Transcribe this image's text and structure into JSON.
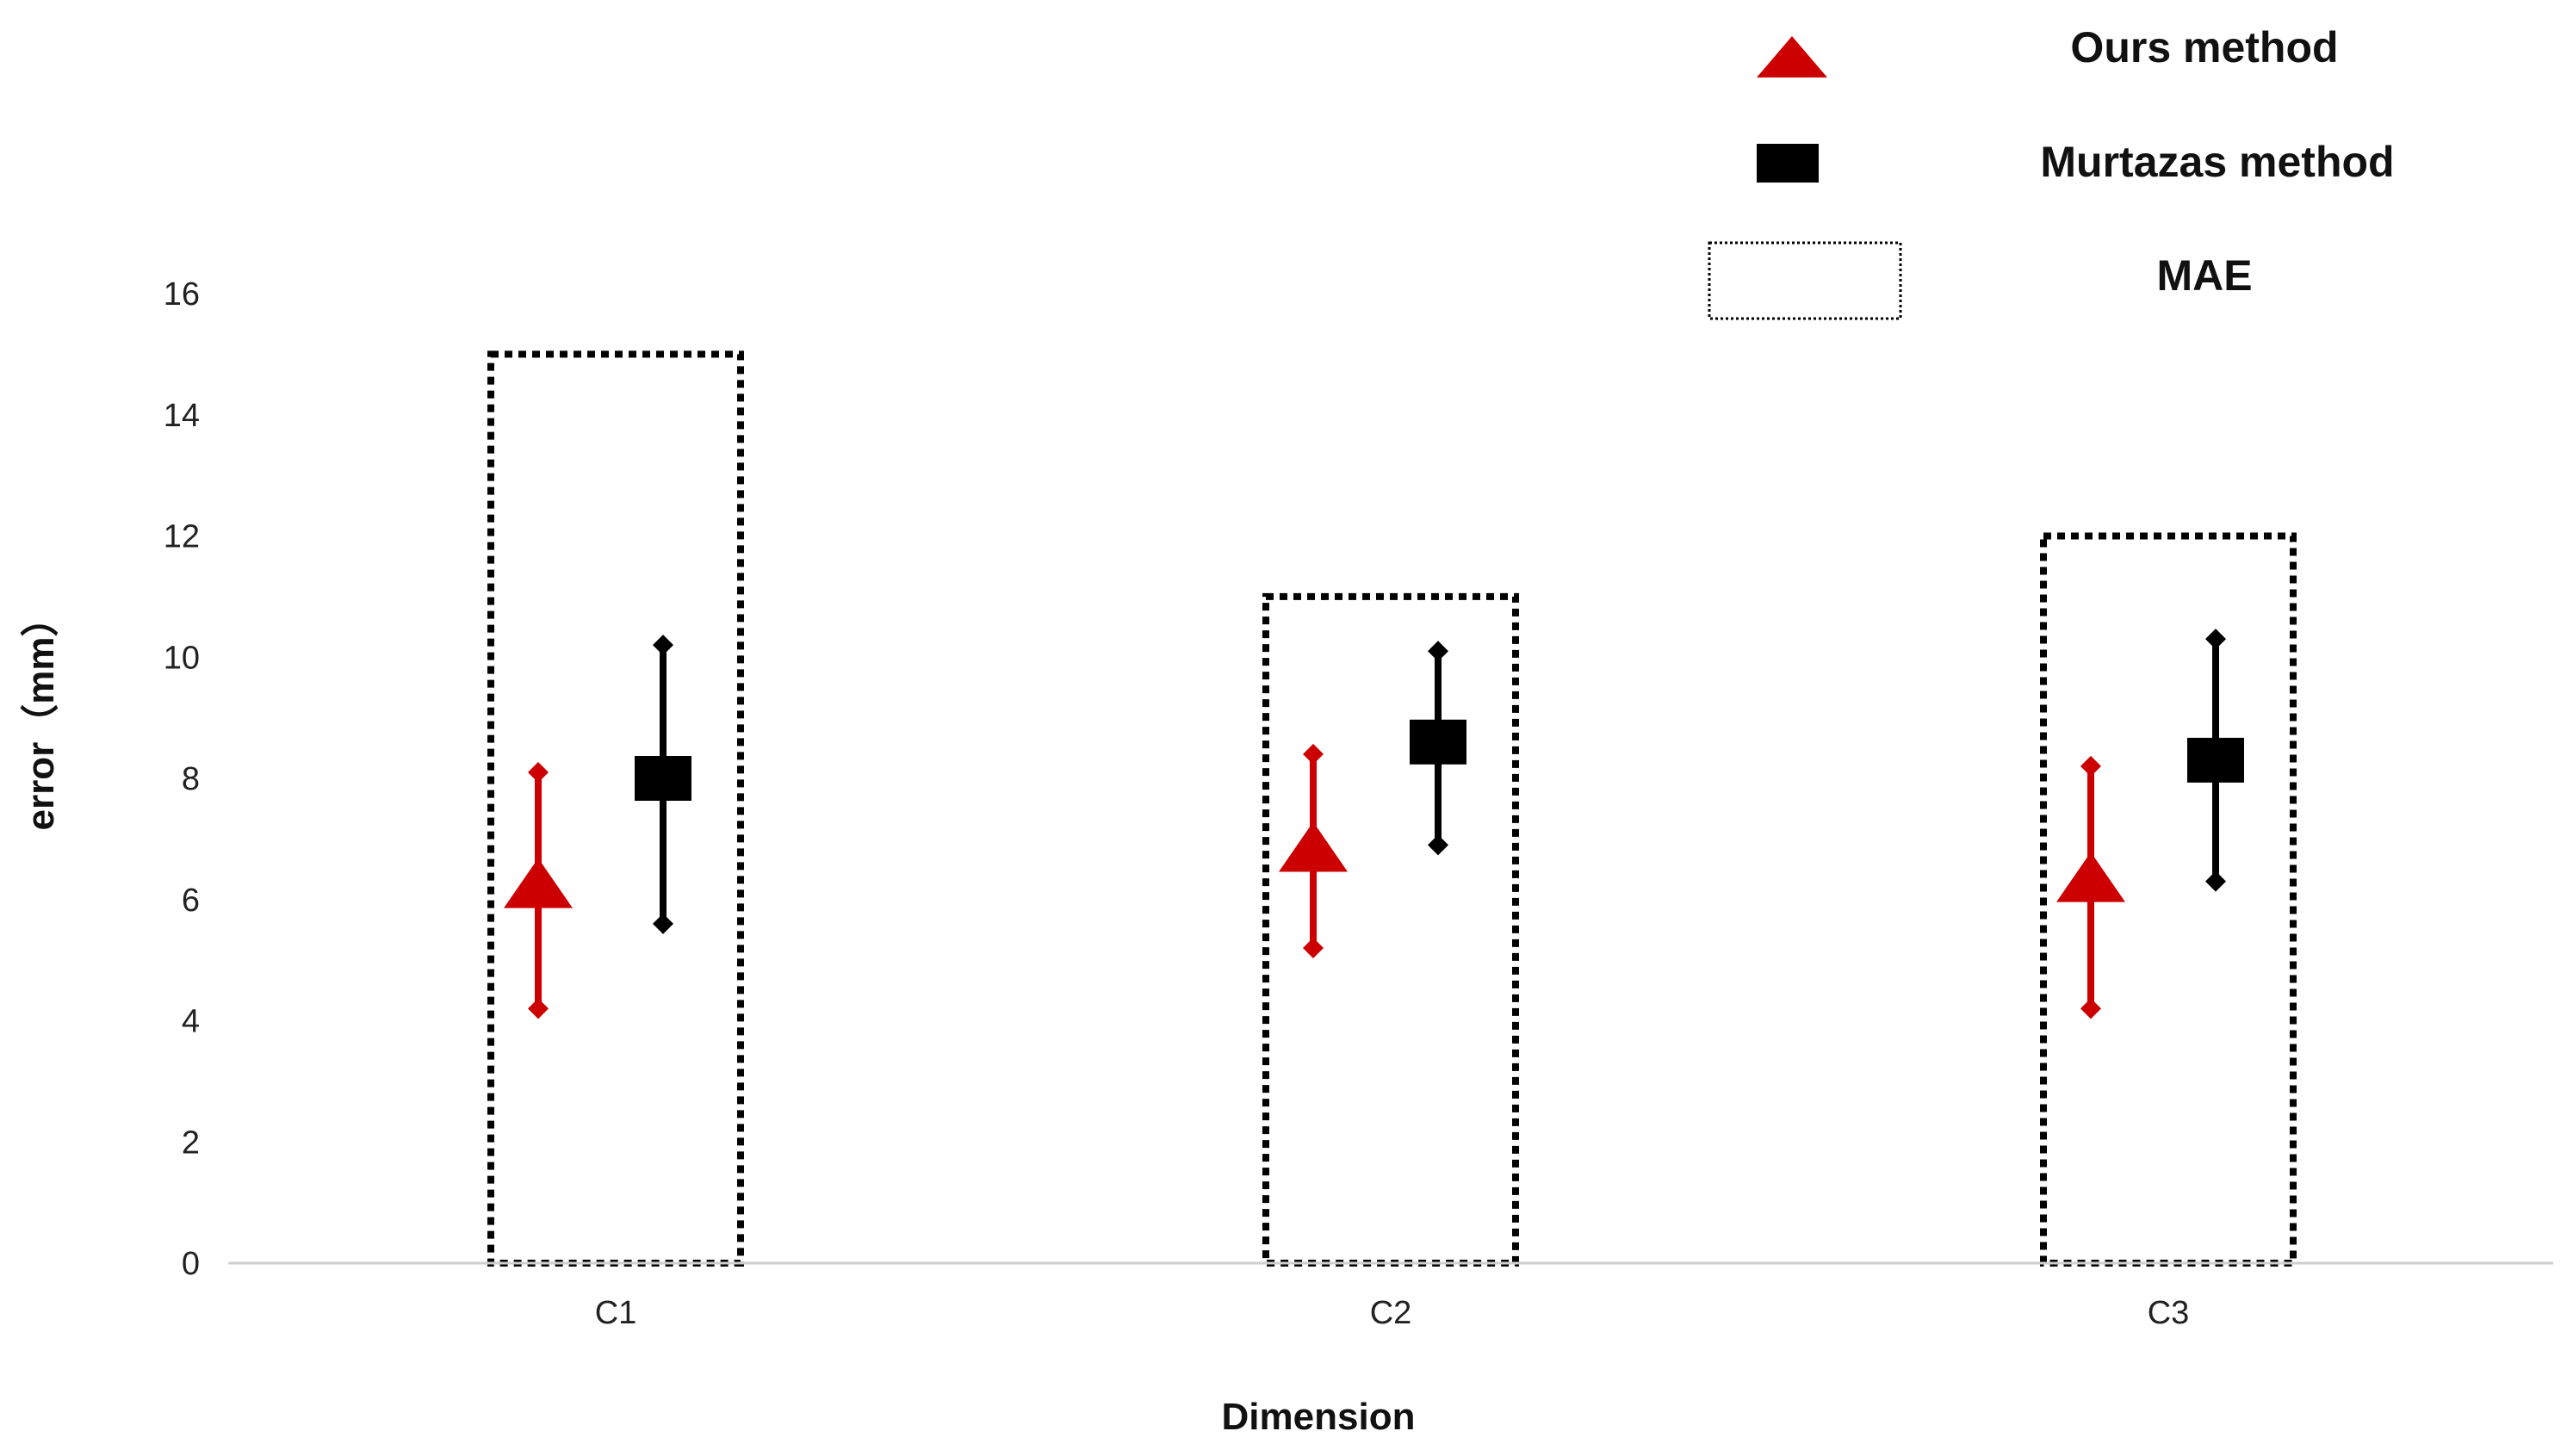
{
  "chart_data": {
    "type": "scatter",
    "title": "",
    "xlabel": "Dimension",
    "ylabel": "error（mm）",
    "categories": [
      "C1",
      "C2",
      "C3"
    ],
    "ylim": [
      0,
      16
    ],
    "yticks": [
      0,
      2,
      4,
      6,
      8,
      10,
      12,
      14,
      16
    ],
    "grid": false,
    "legend_position": "top-right",
    "series": [
      {
        "name": "Ours method",
        "marker": "triangle",
        "color": "#cc0000",
        "values": [
          6.2,
          6.8,
          6.3
        ],
        "lower": [
          4.2,
          5.2,
          4.2
        ],
        "upper": [
          8.1,
          8.4,
          8.2
        ]
      },
      {
        "name": "Murtazas method",
        "marker": "square",
        "color": "#000000",
        "values": [
          8.0,
          8.6,
          8.3
        ],
        "lower": [
          5.6,
          6.9,
          6.3
        ],
        "upper": [
          10.2,
          10.1,
          10.3
        ]
      }
    ],
    "mae": {
      "name": "MAE",
      "style": "dotted-box",
      "color": "#000000",
      "values": [
        15.0,
        11.0,
        12.0
      ]
    }
  }
}
